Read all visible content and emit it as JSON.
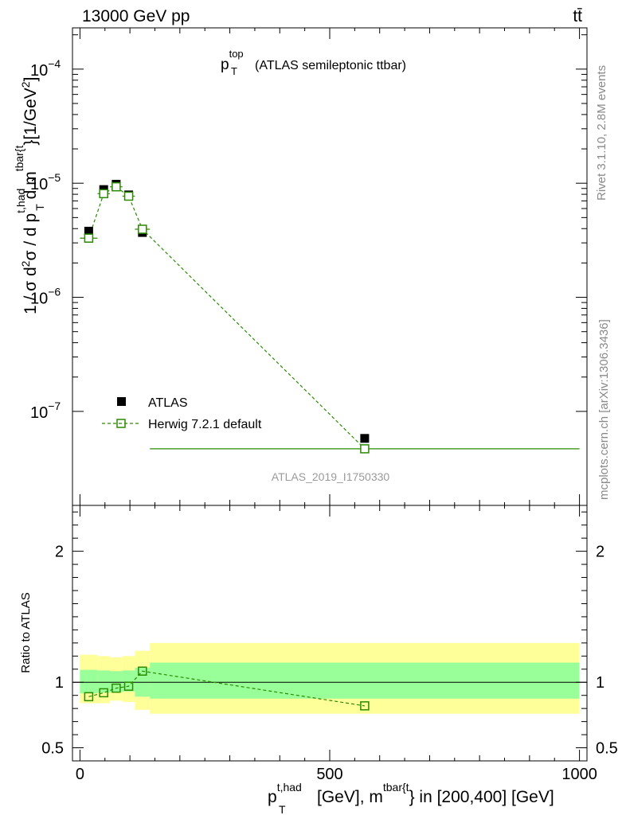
{
  "header": {
    "energy_label": "13000 GeV pp",
    "process_label": "tt̄"
  },
  "side_labels": {
    "rivet": "Rivet 3.1.10,  2.8M events",
    "source": "mcplots.cern.ch [arXiv:1306.3436]"
  },
  "watermark": "ATLAS_2019_I1750330",
  "colors": {
    "data": "#000000",
    "mc": "#2a8a00",
    "band_inner": "#99ff99",
    "band_outer": "#ffff99"
  },
  "chart_data": [
    {
      "type": "scatter",
      "panel": "main",
      "title_main": "p",
      "title_sup": "top",
      "title_sub": "T",
      "title_rest": "(ATLAS semileptonic ttbar)",
      "xlabel": "p_T^{t,had} [GeV], m^{tbar{t}} in [200,400] [GeV]",
      "xlabel_p": "p",
      "xlabel_sup1": "t,had",
      "xlabel_sub": "T",
      "xlabel_mid": "[GeV], m",
      "xlabel_sup2": "tbar{t",
      "xlabel_end": "} in [200,400] [GeV]",
      "ylabel": "1 / σ d²σ / d p_T^{t,had} d m^{tbar{t}} [1/GeV²]",
      "yscale": "log",
      "xlim": [
        -15,
        1015
      ],
      "ylim": [
        1.5e-08,
        0.00023
      ],
      "xticks": [
        0,
        500,
        1000
      ],
      "ytick_labels": [
        {
          "value": 1e-07,
          "base": "10",
          "exp": "−7"
        },
        {
          "value": 1e-06,
          "base": "10",
          "exp": "−6"
        },
        {
          "value": 1e-05,
          "base": "10",
          "exp": "−5"
        },
        {
          "value": 0.0001,
          "base": "10",
          "exp": "−4"
        }
      ],
      "bins": [
        {
          "lo": 0,
          "hi": 35
        },
        {
          "lo": 35,
          "hi": 60
        },
        {
          "lo": 60,
          "hi": 85
        },
        {
          "lo": 85,
          "hi": 110
        },
        {
          "lo": 110,
          "hi": 140
        },
        {
          "lo": 140,
          "hi": 1000
        }
      ],
      "series": [
        {
          "name": "ATLAS",
          "x": [
            17.5,
            47.5,
            72.5,
            97.5,
            125,
            570
          ],
          "values": [
            3.8e-06,
            8.8e-06,
            9.8e-06,
            7.9e-06,
            3.7e-06,
            5.8e-08
          ]
        },
        {
          "name": "Herwig 7.2.1 default",
          "x": [
            17.5,
            47.5,
            72.5,
            97.5,
            125,
            570
          ],
          "values": [
            3.3e-06,
            8.1e-06,
            9.3e-06,
            7.7e-06,
            3.95e-06,
            4.7e-08
          ]
        }
      ]
    },
    {
      "type": "line",
      "panel": "ratio",
      "ylabel": "Ratio to ATLAS",
      "ylim": [
        0.4,
        2.35
      ],
      "yticks": [
        0.5,
        1,
        2
      ],
      "ytick_labels": [
        "0.5",
        "1",
        "2"
      ],
      "xticks": [
        0,
        500,
        1000
      ],
      "xtick_labels": [
        "0",
        "500",
        "1000"
      ],
      "band_inner": [
        {
          "lo": 0,
          "hi": 35,
          "down": 0.915,
          "up": 1.095
        },
        {
          "lo": 35,
          "hi": 60,
          "down": 0.92,
          "up": 1.09
        },
        {
          "lo": 60,
          "hi": 85,
          "down": 0.925,
          "up": 1.085
        },
        {
          "lo": 85,
          "hi": 110,
          "down": 0.93,
          "up": 1.09
        },
        {
          "lo": 110,
          "hi": 140,
          "down": 0.89,
          "up": 1.11
        },
        {
          "lo": 140,
          "hi": 1000,
          "down": 0.875,
          "up": 1.15
        }
      ],
      "band_outer": [
        {
          "lo": 0,
          "hi": 35,
          "down": 0.84,
          "up": 1.21
        },
        {
          "lo": 35,
          "hi": 60,
          "down": 0.84,
          "up": 1.2
        },
        {
          "lo": 60,
          "hi": 85,
          "down": 0.86,
          "up": 1.19
        },
        {
          "lo": 85,
          "hi": 110,
          "down": 0.85,
          "up": 1.2
        },
        {
          "lo": 110,
          "hi": 140,
          "down": 0.79,
          "up": 1.24
        },
        {
          "lo": 140,
          "hi": 1000,
          "down": 0.76,
          "up": 1.3
        }
      ],
      "ratio_series": {
        "name": "Herwig 7.2.1 default",
        "x": [
          17.5,
          47.5,
          72.5,
          97.5,
          125,
          570
        ],
        "values": [
          0.89,
          0.92,
          0.955,
          0.97,
          1.085,
          0.82
        ]
      }
    }
  ]
}
